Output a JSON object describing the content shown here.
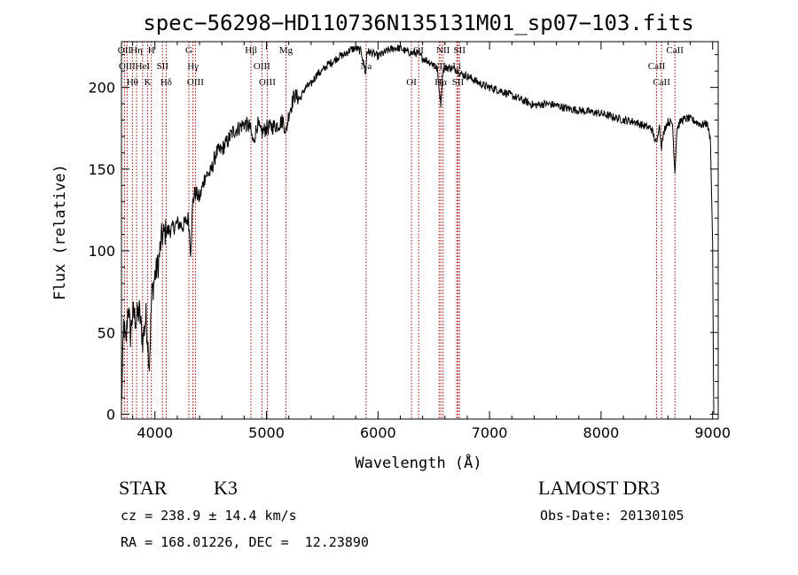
{
  "chart_data": {
    "type": "line",
    "title": "spec−56298−HD110736N135131M01_sp07−103.fits",
    "xlabel": "Wavelength (Å)",
    "ylabel": "Flux (relative)",
    "xlim": [
      3700,
      9050
    ],
    "ylim": [
      -3,
      228
    ],
    "x_ticks": [
      4000,
      5000,
      6000,
      7000,
      8000,
      9000
    ],
    "x_tick_labels": [
      "4000",
      "5000",
      "6000",
      "7000",
      "8000",
      "9000"
    ],
    "y_ticks": [
      0,
      50,
      100,
      150,
      200
    ],
    "y_tick_labels": [
      "0",
      "50",
      "100",
      "150",
      "200"
    ],
    "grid": false,
    "line_color": "#000000",
    "marker_color": "#aa0000",
    "series": [
      {
        "name": "spectrum",
        "x": [
          3700,
          3720,
          3740,
          3760,
          3780,
          3800,
          3830,
          3860,
          3890,
          3920,
          3950,
          3970,
          4000,
          4030,
          4060,
          4100,
          4150,
          4200,
          4250,
          4300,
          4320,
          4340,
          4360,
          4400,
          4450,
          4500,
          4550,
          4600,
          4650,
          4700,
          4750,
          4800,
          4850,
          4880,
          4920,
          4950,
          5000,
          5050,
          5100,
          5150,
          5175,
          5200,
          5250,
          5300,
          5350,
          5400,
          5450,
          5500,
          5550,
          5600,
          5650,
          5700,
          5750,
          5800,
          5850,
          5890,
          5900,
          5950,
          6000,
          6050,
          6100,
          6150,
          6200,
          6250,
          6300,
          6350,
          6400,
          6450,
          6500,
          6530,
          6563,
          6580,
          6600,
          6650,
          6700,
          6750,
          6800,
          6850,
          6900,
          6950,
          7000,
          7100,
          7200,
          7300,
          7400,
          7500,
          7600,
          7700,
          7800,
          7900,
          8000,
          8100,
          8200,
          8300,
          8400,
          8450,
          8498,
          8520,
          8542,
          8570,
          8600,
          8640,
          8662,
          8680,
          8720,
          8780,
          8820,
          8850,
          8900,
          8950,
          8980,
          9000,
          9010
        ],
        "y": [
          5,
          55,
          42,
          68,
          48,
          62,
          58,
          63,
          45,
          60,
          30,
          72,
          85,
          92,
          108,
          112,
          113,
          117,
          115,
          120,
          100,
          130,
          136,
          132,
          146,
          148,
          160,
          162,
          167,
          173,
          175,
          178,
          176,
          166,
          178,
          172,
          175,
          176,
          177,
          180,
          172,
          184,
          195,
          193,
          200,
          202,
          208,
          210,
          214,
          216,
          219,
          220,
          223,
          224,
          222,
          208,
          222,
          221,
          219,
          221,
          223,
          224,
          224,
          222,
          221,
          221,
          218,
          216,
          214,
          211,
          190,
          210,
          212,
          212,
          211,
          208,
          207,
          205,
          203,
          201,
          200,
          198,
          195,
          192,
          189,
          190,
          189,
          187,
          186,
          185,
          184,
          182,
          180,
          179,
          176,
          175,
          165,
          178,
          164,
          175,
          179,
          178,
          148,
          175,
          180,
          181,
          180,
          179,
          177,
          178,
          168,
          105,
          0
        ]
      }
    ],
    "line_markers": [
      {
        "wavelength": 3727,
        "label": "OII"
      },
      {
        "wavelength": 3750,
        "label": "OIII"
      },
      {
        "wavelength": 3798,
        "label": "Hθ"
      },
      {
        "wavelength": 3835,
        "label": "Hη"
      },
      {
        "wavelength": 3889,
        "label": "HeI"
      },
      {
        "wavelength": 3934,
        "label": "K"
      },
      {
        "wavelength": 3968,
        "label": "H"
      },
      {
        "wavelength": 4068,
        "label": "SII"
      },
      {
        "wavelength": 4101,
        "label": "Hδ"
      },
      {
        "wavelength": 4304,
        "label": "G"
      },
      {
        "wavelength": 4341,
        "label": "Hγ"
      },
      {
        "wavelength": 4363,
        "label": "OIII"
      },
      {
        "wavelength": 4861,
        "label": "Hβ"
      },
      {
        "wavelength": 4959,
        "label": "OIII"
      },
      {
        "wavelength": 5007,
        "label": "OIII"
      },
      {
        "wavelength": 5175,
        "label": "Mg"
      },
      {
        "wavelength": 5893,
        "label": "Na"
      },
      {
        "wavelength": 6300,
        "label": "OI"
      },
      {
        "wavelength": 6364,
        "label": "OI"
      },
      {
        "wavelength": 6548,
        "label": "NII"
      },
      {
        "wavelength": 6563,
        "label": "Hα"
      },
      {
        "wavelength": 6583,
        "label": "NII"
      },
      {
        "wavelength": 6707,
        "label": "Li"
      },
      {
        "wavelength": 6717,
        "label": "SII"
      },
      {
        "wavelength": 6731,
        "label": "SII"
      },
      {
        "wavelength": 8498,
        "label": "CaII"
      },
      {
        "wavelength": 8542,
        "label": "CaII"
      },
      {
        "wavelength": 8662,
        "label": "CaII"
      }
    ]
  },
  "info": {
    "class": "STAR",
    "subclass": "K3",
    "survey": "LAMOST DR3",
    "redshift": "cz = 238.9 ± 14.4 km/s",
    "obs_date": "Obs-Date: 20130105",
    "coords": "RA = 168.01226, DEC =  12.23890"
  }
}
